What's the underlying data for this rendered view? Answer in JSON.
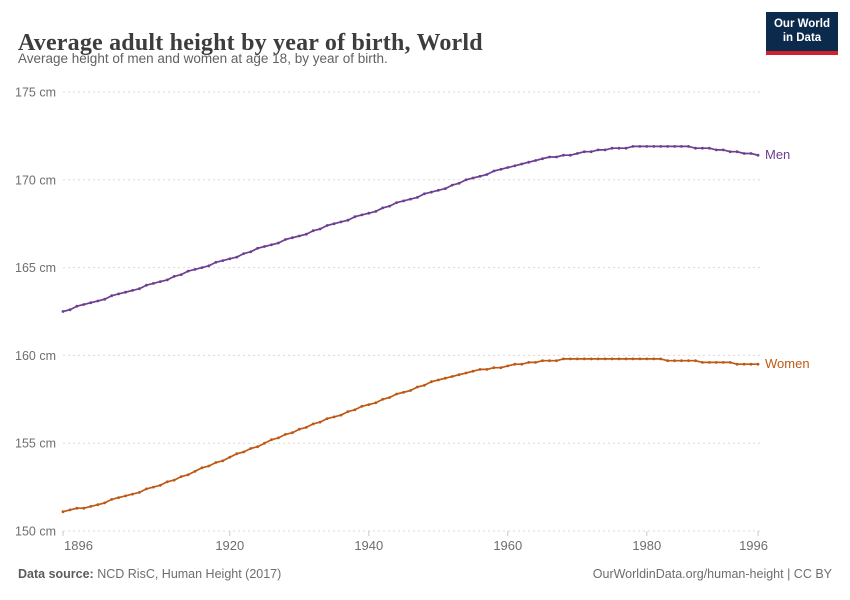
{
  "header": {
    "title": "Average adult height by year of birth, World",
    "subtitle": "Average height of men and women at age 18, by year of birth.",
    "logo": {
      "line1": "Our World",
      "line2": "in Data",
      "bg_color": "#0b2a4c",
      "bar_color": "#d0222d"
    }
  },
  "chart_data": {
    "type": "line",
    "title": "Average adult height by year of birth, World",
    "xlabel": "",
    "ylabel": "",
    "ylim": [
      150,
      175
    ],
    "yticks": [
      150,
      155,
      160,
      165,
      170,
      175
    ],
    "ytick_suffix": " cm",
    "xticks": [
      1896,
      1920,
      1940,
      1960,
      1980,
      1996
    ],
    "grid": "horizontal-dashed",
    "legend_position": "end-of-line",
    "x": [
      1896,
      1897,
      1898,
      1899,
      1900,
      1901,
      1902,
      1903,
      1904,
      1905,
      1906,
      1907,
      1908,
      1909,
      1910,
      1911,
      1912,
      1913,
      1914,
      1915,
      1916,
      1917,
      1918,
      1919,
      1920,
      1921,
      1922,
      1923,
      1924,
      1925,
      1926,
      1927,
      1928,
      1929,
      1930,
      1931,
      1932,
      1933,
      1934,
      1935,
      1936,
      1937,
      1938,
      1939,
      1940,
      1941,
      1942,
      1943,
      1944,
      1945,
      1946,
      1947,
      1948,
      1949,
      1950,
      1951,
      1952,
      1953,
      1954,
      1955,
      1956,
      1957,
      1958,
      1959,
      1960,
      1961,
      1962,
      1963,
      1964,
      1965,
      1966,
      1967,
      1968,
      1969,
      1970,
      1971,
      1972,
      1973,
      1974,
      1975,
      1976,
      1977,
      1978,
      1979,
      1980,
      1981,
      1982,
      1983,
      1984,
      1985,
      1986,
      1987,
      1988,
      1989,
      1990,
      1991,
      1992,
      1993,
      1994,
      1995,
      1996
    ],
    "series": [
      {
        "name": "Men",
        "color": "#6d3e91",
        "values": [
          162.5,
          162.6,
          162.8,
          162.9,
          163.0,
          163.1,
          163.2,
          163.4,
          163.5,
          163.6,
          163.7,
          163.8,
          164.0,
          164.1,
          164.2,
          164.3,
          164.5,
          164.6,
          164.8,
          164.9,
          165.0,
          165.1,
          165.3,
          165.4,
          165.5,
          165.6,
          165.8,
          165.9,
          166.1,
          166.2,
          166.3,
          166.4,
          166.6,
          166.7,
          166.8,
          166.9,
          167.1,
          167.2,
          167.4,
          167.5,
          167.6,
          167.7,
          167.9,
          168.0,
          168.1,
          168.2,
          168.4,
          168.5,
          168.7,
          168.8,
          168.9,
          169.0,
          169.2,
          169.3,
          169.4,
          169.5,
          169.7,
          169.8,
          170.0,
          170.1,
          170.2,
          170.3,
          170.5,
          170.6,
          170.7,
          170.8,
          170.9,
          171.0,
          171.1,
          171.2,
          171.3,
          171.3,
          171.4,
          171.4,
          171.5,
          171.6,
          171.6,
          171.7,
          171.7,
          171.8,
          171.8,
          171.8,
          171.9,
          171.9,
          171.9,
          171.9,
          171.9,
          171.9,
          171.9,
          171.9,
          171.9,
          171.8,
          171.8,
          171.8,
          171.7,
          171.7,
          171.6,
          171.6,
          171.5,
          171.5,
          171.4
        ]
      },
      {
        "name": "Women",
        "color": "#be5915",
        "values": [
          151.1,
          151.2,
          151.3,
          151.3,
          151.4,
          151.5,
          151.6,
          151.8,
          151.9,
          152.0,
          152.1,
          152.2,
          152.4,
          152.5,
          152.6,
          152.8,
          152.9,
          153.1,
          153.2,
          153.4,
          153.6,
          153.7,
          153.9,
          154.0,
          154.2,
          154.4,
          154.5,
          154.7,
          154.8,
          155.0,
          155.2,
          155.3,
          155.5,
          155.6,
          155.8,
          155.9,
          156.1,
          156.2,
          156.4,
          156.5,
          156.6,
          156.8,
          156.9,
          157.1,
          157.2,
          157.3,
          157.5,
          157.6,
          157.8,
          157.9,
          158.0,
          158.2,
          158.3,
          158.5,
          158.6,
          158.7,
          158.8,
          158.9,
          159.0,
          159.1,
          159.2,
          159.2,
          159.3,
          159.3,
          159.4,
          159.5,
          159.5,
          159.6,
          159.6,
          159.7,
          159.7,
          159.7,
          159.8,
          159.8,
          159.8,
          159.8,
          159.8,
          159.8,
          159.8,
          159.8,
          159.8,
          159.8,
          159.8,
          159.8,
          159.8,
          159.8,
          159.8,
          159.7,
          159.7,
          159.7,
          159.7,
          159.7,
          159.6,
          159.6,
          159.6,
          159.6,
          159.6,
          159.5,
          159.5,
          159.5,
          159.5
        ]
      }
    ],
    "style": {
      "grid_color": "#dadada",
      "tick_color": "#c9c9c9",
      "axis_label_color": "#6e6e6e",
      "marker_radius": 1.4,
      "line_width": 1.7
    }
  },
  "footer": {
    "source_label": "Data source:",
    "source_value": " NCD RisC, Human Height (2017)",
    "credit": "OurWorldinData.org/human-height | CC BY"
  }
}
